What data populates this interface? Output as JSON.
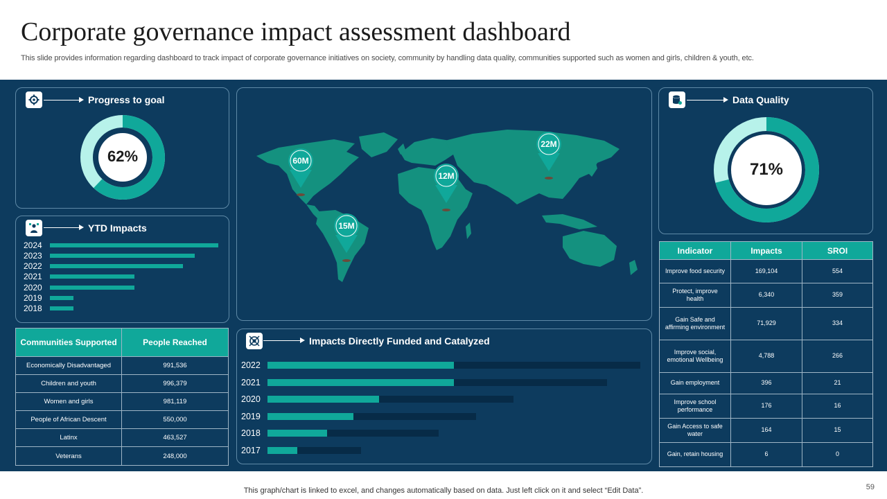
{
  "header": {
    "title": "Corporate governance impact assessment dashboard",
    "subtitle": "This slide provides information regarding dashboard to track impact of corporate governance initiatives on society, community by handling data quality, communities supported such as women and girls, children & youth, etc."
  },
  "colors": {
    "background": "#0d3b5e",
    "accent": "#10a89a",
    "light_accent": "#b7f2ea",
    "track": "#072b47"
  },
  "progress": {
    "title": "Progress to goal",
    "icon": "gear-chart-icon",
    "value": 62,
    "label": "62%"
  },
  "ytd": {
    "title": "YTD Impacts",
    "icon": "presenter-icon",
    "rows": [
      {
        "year": "2024",
        "value": 100
      },
      {
        "year": "2023",
        "value": 86
      },
      {
        "year": "2022",
        "value": 79
      },
      {
        "year": "2021",
        "value": 50
      },
      {
        "year": "2020",
        "value": 50
      },
      {
        "year": "2019",
        "value": 14
      },
      {
        "year": "2018",
        "value": 14
      }
    ]
  },
  "communities": {
    "headers": [
      "Communities Supported",
      "People Reached"
    ],
    "rows": [
      [
        "Economically Disadvantaged",
        "991,536"
      ],
      [
        "Children and youth",
        "996,379"
      ],
      [
        "Women and girls",
        "981,119"
      ],
      [
        "People of African Descent",
        "550,000"
      ],
      [
        "Latinx",
        "463,527"
      ],
      [
        "Veterans",
        "248,000"
      ]
    ]
  },
  "map": {
    "pins": [
      {
        "label": "60M",
        "region": "North America"
      },
      {
        "label": "15M",
        "region": "South America"
      },
      {
        "label": "12M",
        "region": "Africa"
      },
      {
        "label": "22M",
        "region": "Asia"
      }
    ]
  },
  "data_quality": {
    "title": "Data Quality",
    "icon": "database-icon",
    "value": 71,
    "label": "71%"
  },
  "chart_data": [
    {
      "type": "bar",
      "title": "Impacts Directly Funded and Catalyzed",
      "categories": [
        "2022",
        "2021",
        "2020",
        "2019",
        "2018",
        "2017"
      ],
      "series": [
        {
          "name": "Funded",
          "values": [
            50,
            50,
            30,
            23,
            16,
            8
          ]
        },
        {
          "name": "Catalyzed",
          "values": [
            100,
            91,
            66,
            56,
            46,
            25
          ]
        }
      ],
      "xlim": [
        0,
        100
      ]
    },
    {
      "type": "bar",
      "title": "YTD Impacts",
      "categories": [
        "2024",
        "2023",
        "2022",
        "2021",
        "2020",
        "2019",
        "2018"
      ],
      "values": [
        100,
        86,
        79,
        50,
        50,
        14,
        14
      ]
    }
  ],
  "impacts_chart": {
    "title": "Impacts Directly Funded and Catalyzed",
    "icon": "target-gear-icon"
  },
  "indicators": {
    "headers": [
      "Indicator",
      "Impacts",
      "SROI"
    ],
    "rows": [
      [
        "Improve food security",
        "169,104",
        "554"
      ],
      [
        "Protect, improve health",
        "6,340",
        "359"
      ],
      [
        "Gain Safe and affirming environment",
        "71,929",
        "334"
      ],
      [
        "Improve social, emotional Wellbeing",
        "4,788",
        "266"
      ],
      [
        "Gain employment",
        "396",
        "21"
      ],
      [
        "Improve school performance",
        "176",
        "16"
      ],
      [
        "Gain Access to safe water",
        "164",
        "15"
      ],
      [
        "Gain, retain housing",
        "6",
        "0"
      ]
    ]
  },
  "footer": {
    "note": "This graph/chart is linked to excel,  and changes automatically based on data. Just left click on it and select “Edit Data”.",
    "page_number": "59"
  }
}
